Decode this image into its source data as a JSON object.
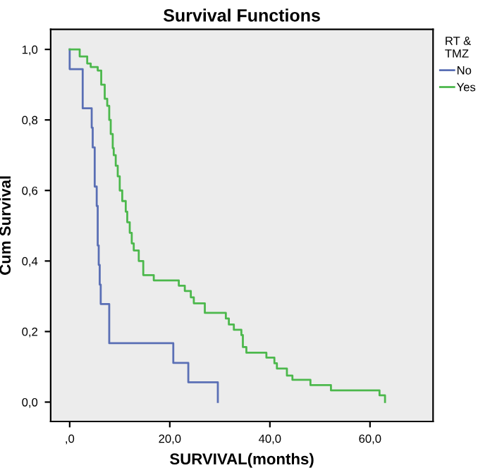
{
  "chart_data": {
    "type": "step",
    "title": "Survival Functions",
    "xlabel": "SURVIVAL(months)",
    "ylabel": "Cum Survival",
    "legend_title": "RT &\nTMZ",
    "legend": "right",
    "xlim": [
      -3.8,
      72.6
    ],
    "ylim": [
      -0.055,
      1.057
    ],
    "xticks": [
      {
        "value": 0,
        "label": ",0"
      },
      {
        "value": 20,
        "label": "20,0"
      },
      {
        "value": 40,
        "label": "40,0"
      },
      {
        "value": 60,
        "label": "60,0"
      }
    ],
    "yticks": [
      {
        "value": 0,
        "label": "0,0"
      },
      {
        "value": 0.2,
        "label": "0,2"
      },
      {
        "value": 0.4,
        "label": "0,4"
      },
      {
        "value": 0.6,
        "label": "0,6"
      },
      {
        "value": 0.8,
        "label": "0,8"
      },
      {
        "value": 1.0,
        "label": "1,0"
      }
    ],
    "series": [
      {
        "name": "No",
        "color": "#5a6fb5",
        "x": [
          0,
          0,
          2.6,
          4.4,
          4.6,
          5.0,
          5.4,
          5.6,
          5.8,
          6.0,
          6.2,
          7.9,
          20.7,
          23.7,
          29.6
        ],
        "values": [
          1.0,
          0.944,
          0.833,
          0.778,
          0.722,
          0.611,
          0.556,
          0.444,
          0.389,
          0.333,
          0.278,
          0.167,
          0.111,
          0.056,
          0.0
        ]
      },
      {
        "name": "Yes",
        "color": "#4cb84c",
        "x": [
          0,
          2.0,
          3.5,
          4.2,
          5.6,
          6.3,
          7.0,
          7.5,
          7.9,
          8.2,
          8.6,
          8.8,
          9.2,
          9.6,
          10.0,
          10.5,
          11.2,
          11.5,
          12.0,
          12.4,
          12.8,
          13.8,
          14.7,
          16.8,
          21.8,
          23.0,
          24.2,
          24.8,
          27.0,
          31.2,
          31.8,
          32.8,
          34.3,
          34.6,
          35.3,
          39.3,
          40.9,
          41.4,
          43.4,
          44.5,
          48.1,
          52.2,
          61.9,
          63.0
        ],
        "values": [
          1.0,
          0.98,
          0.96,
          0.95,
          0.94,
          0.9,
          0.86,
          0.84,
          0.8,
          0.76,
          0.72,
          0.7,
          0.67,
          0.64,
          0.6,
          0.57,
          0.54,
          0.51,
          0.48,
          0.45,
          0.43,
          0.4,
          0.36,
          0.345,
          0.33,
          0.315,
          0.297,
          0.28,
          0.253,
          0.237,
          0.22,
          0.205,
          0.19,
          0.156,
          0.14,
          0.126,
          0.11,
          0.095,
          0.075,
          0.063,
          0.048,
          0.033,
          0.019,
          0.0
        ]
      }
    ]
  }
}
